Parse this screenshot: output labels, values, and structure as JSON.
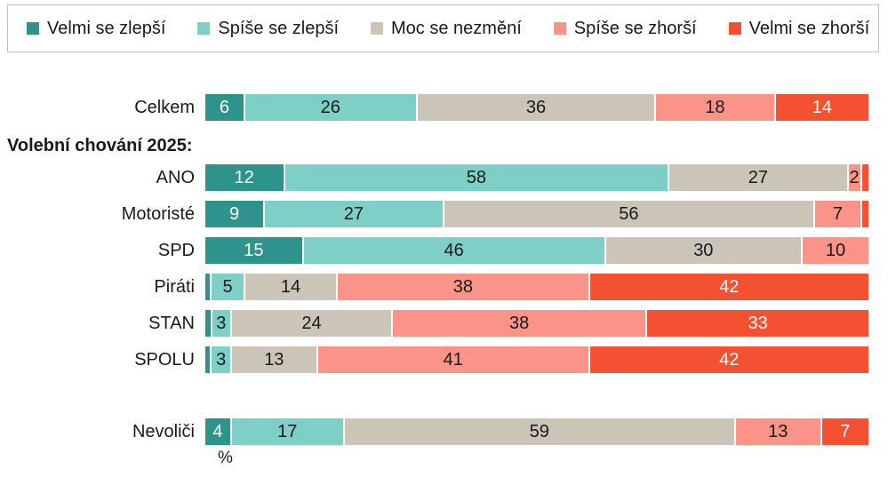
{
  "legend": {
    "items": [
      {
        "label": "Velmi se zlepší",
        "color": "#2E948B"
      },
      {
        "label": "Spíše se zlepší",
        "color": "#7ECFC5"
      },
      {
        "label": "Moc se nezmění",
        "color": "#CBC5B8"
      },
      {
        "label": "Spíše se zhorší",
        "color": "#FA9488"
      },
      {
        "label": "Velmi se zhorší",
        "color": "#F45032"
      }
    ],
    "border_color": "#bfbfbf"
  },
  "section_header": "Volební chování 2025:",
  "axis_unit": "%",
  "chart_data": {
    "type": "bar",
    "orientation": "horizontal",
    "stacked": true,
    "unit": "%",
    "xlim": [
      0,
      100
    ],
    "grid": false,
    "legend_position": "top",
    "series_names": [
      "Velmi se zlepší",
      "Spíše se zlepší",
      "Moc se nezmění",
      "Spíše se zhorší",
      "Velmi se zhorší"
    ],
    "series_colors": [
      "#2E948B",
      "#7ECFC5",
      "#CBC5B8",
      "#FA9488",
      "#F45032"
    ],
    "value_label_colors": [
      "#ffffff",
      "#1a1a1a",
      "#1a1a1a",
      "#1a1a1a",
      "#ffffff"
    ],
    "min_label_value": 2,
    "categories": [
      "Celkem",
      "ANO",
      "Motoristé",
      "SPD",
      "Piráti",
      "STAN",
      "SPOLU",
      "Nevoliči"
    ],
    "rows": [
      {
        "label": "Celkem",
        "group": "total",
        "values": [
          6,
          26,
          36,
          18,
          14
        ]
      },
      {
        "label": "ANO",
        "group": "party",
        "values": [
          12,
          58,
          27,
          2,
          1
        ]
      },
      {
        "label": "Motoristé",
        "group": "party",
        "values": [
          9,
          27,
          56,
          7,
          1
        ]
      },
      {
        "label": "SPD",
        "group": "party",
        "values": [
          15,
          46,
          30,
          10,
          0
        ]
      },
      {
        "label": "Piráti",
        "group": "party",
        "values": [
          1,
          5,
          14,
          38,
          42
        ]
      },
      {
        "label": "STAN",
        "group": "party",
        "values": [
          1,
          3,
          24,
          38,
          33
        ]
      },
      {
        "label": "SPOLU",
        "group": "party",
        "values": [
          1,
          3,
          13,
          41,
          42
        ]
      },
      {
        "label": "Nevoliči",
        "group": "nonvoter",
        "values": [
          4,
          17,
          59,
          13,
          7
        ]
      }
    ]
  }
}
